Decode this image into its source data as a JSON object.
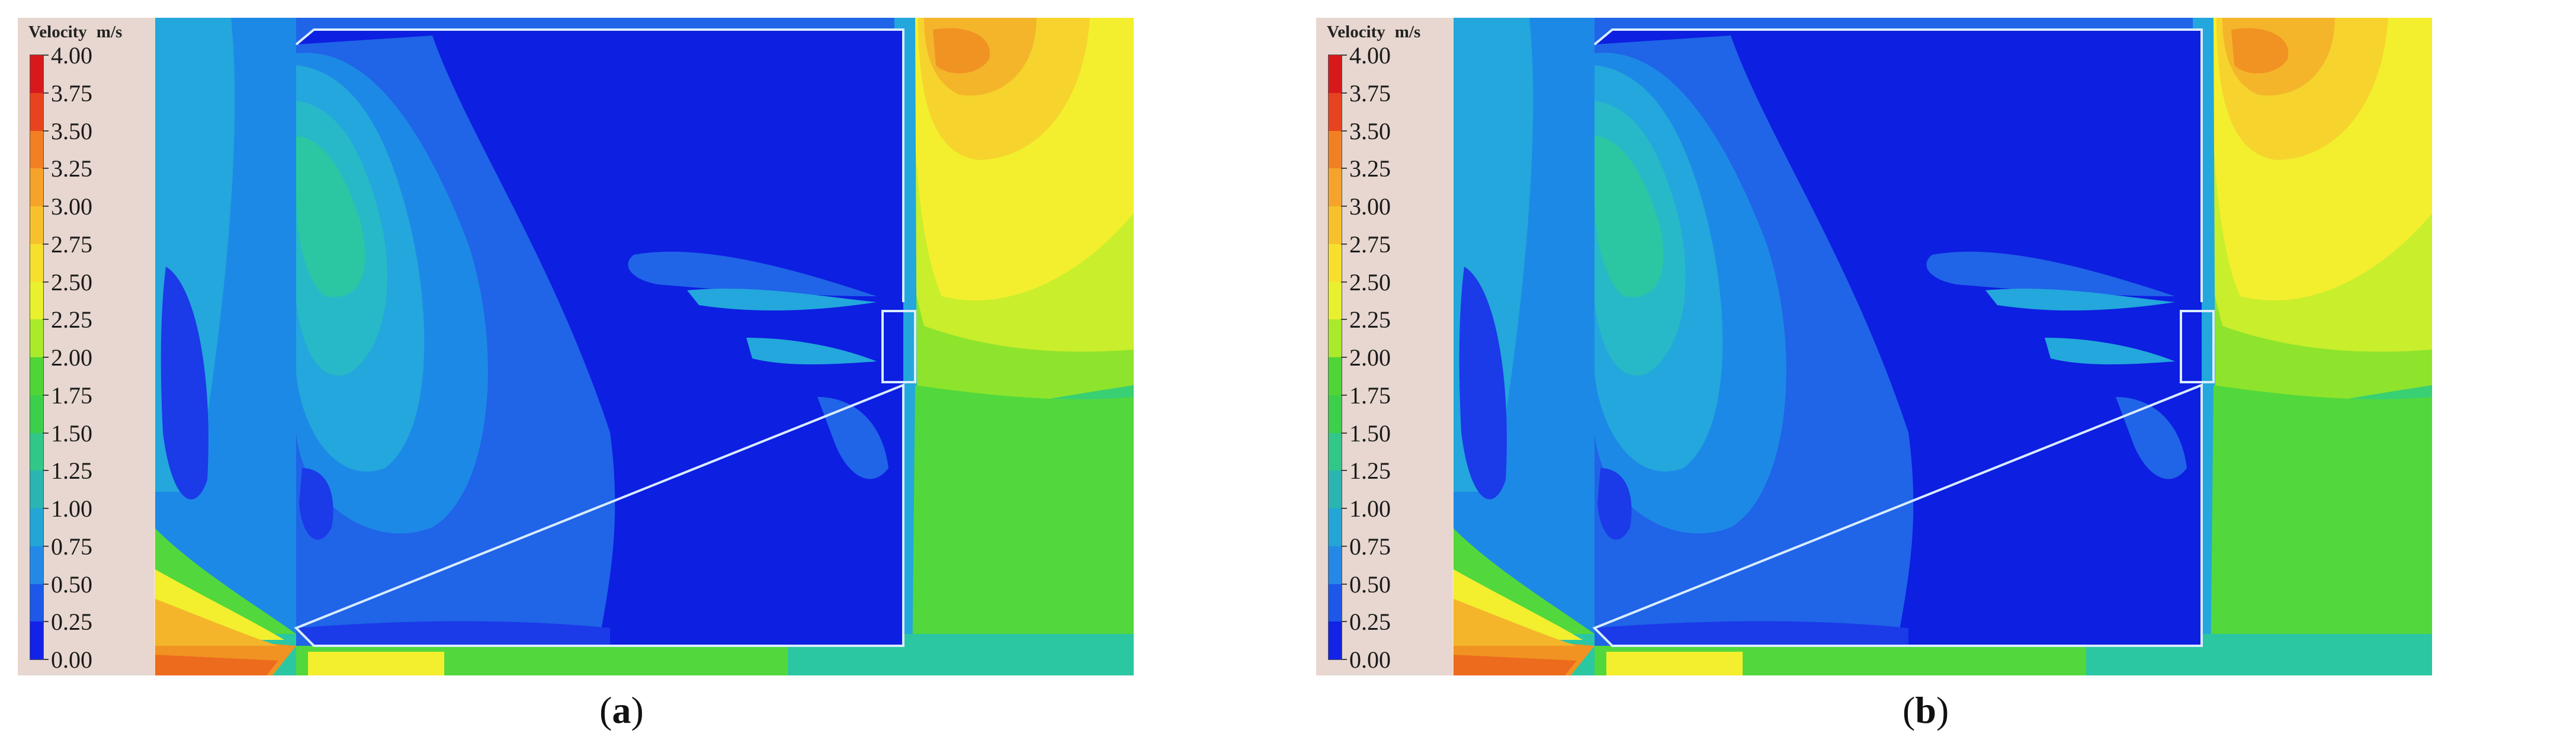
{
  "panels": [
    {
      "id": "a",
      "colorbar": {
        "title": "Velocity",
        "unit": "m/s"
      },
      "caption": {
        "open": "(",
        "letter": "a",
        "close": ")"
      }
    },
    {
      "id": "b",
      "colorbar": {
        "title": "Velocity",
        "unit": "m/s"
      },
      "caption": {
        "open": "(",
        "letter": "b",
        "close": ")"
      }
    }
  ],
  "colorbar_ticks": [
    "4.00",
    "3.75",
    "3.50",
    "3.25",
    "3.00",
    "2.75",
    "2.50",
    "2.25",
    "2.00",
    "1.75",
    "1.50",
    "1.25",
    "1.00",
    "0.75",
    "0.50",
    "0.25",
    "0.00"
  ],
  "colorbar_colors": [
    "#d7191c",
    "#e8431f",
    "#f17f23",
    "#f5a32a",
    "#f6c12c",
    "#f7df2e",
    "#e9f12e",
    "#a9ea2a",
    "#4fd535",
    "#3ccf4a",
    "#31c789",
    "#2ab5b2",
    "#23a5d6",
    "#2489e6",
    "#1d58e8",
    "#1222e6"
  ],
  "field_colors": {
    "v000": "#0d1fe0",
    "v025": "#1b3ae8",
    "v050": "#2064e8",
    "v075": "#1d89e6",
    "v100": "#23a7dc",
    "v125": "#27b9c7",
    "v150": "#2bc7a3",
    "v175": "#39cf73",
    "v200": "#52d83d",
    "v225": "#8ee42c",
    "v250": "#c9ee2c",
    "v275": "#f3ef2e",
    "v300": "#f6d42d",
    "v325": "#f4b52b",
    "v350": "#f19322",
    "v375": "#ec6b1d",
    "outline": "#d9ecff"
  }
}
